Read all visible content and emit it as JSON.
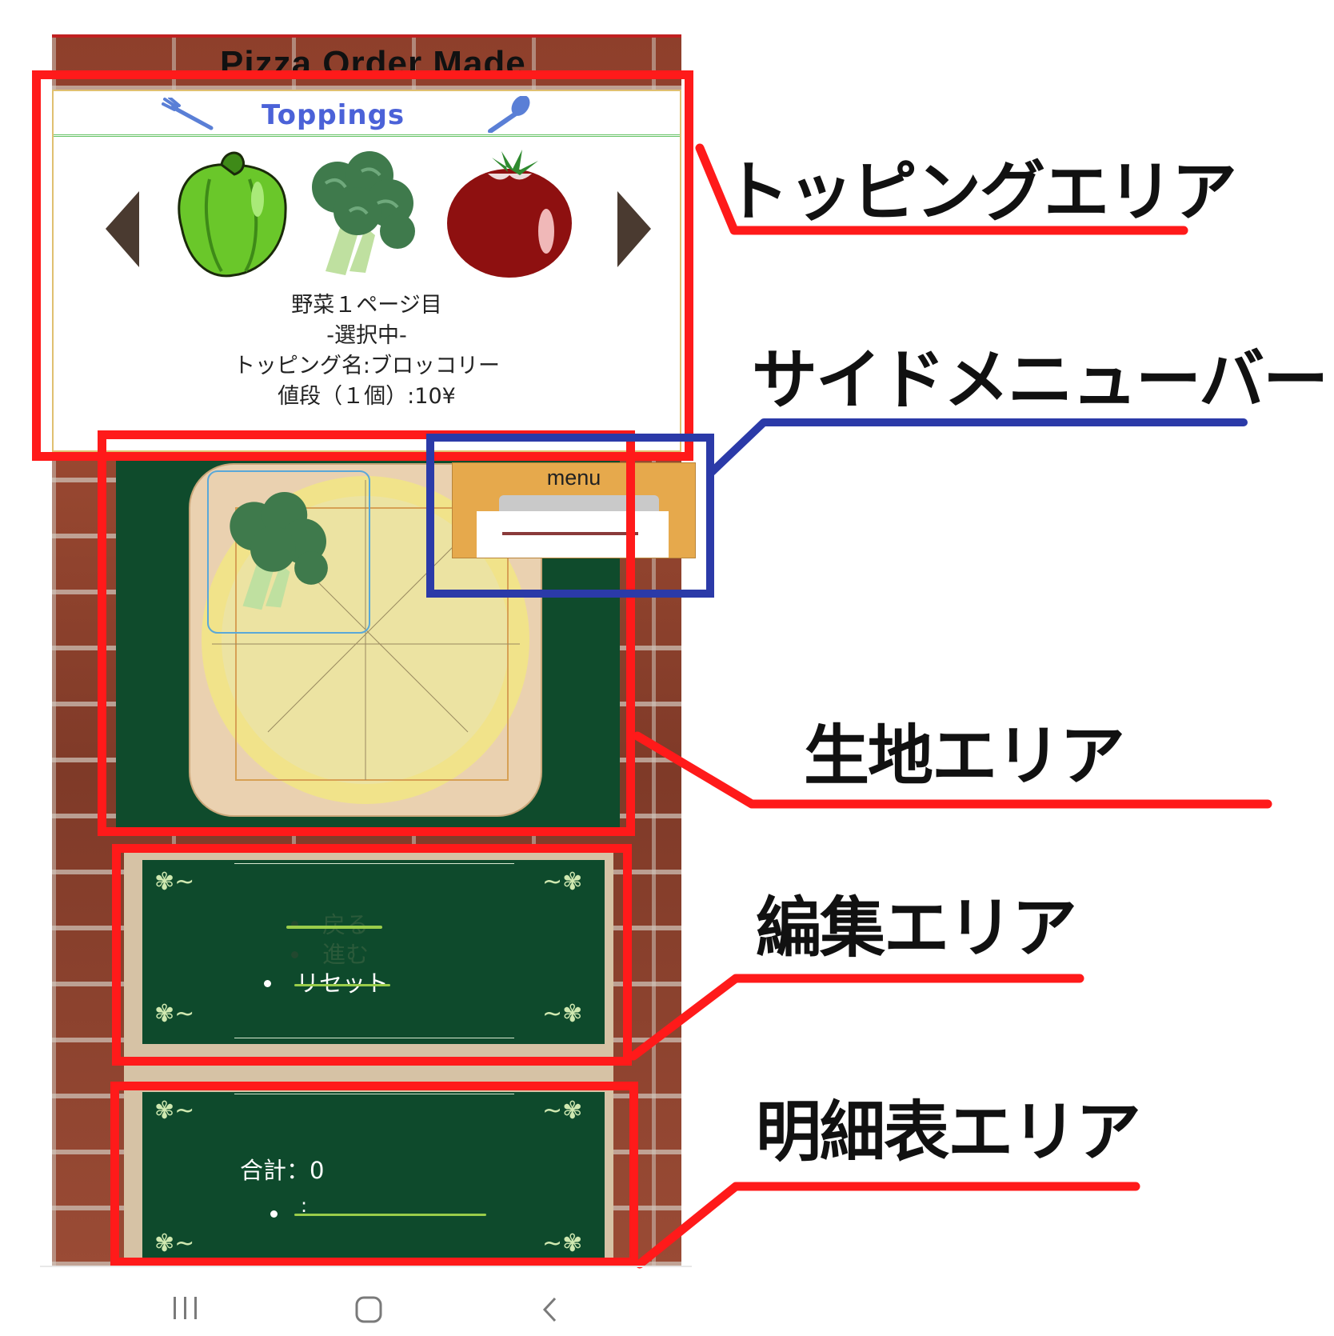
{
  "app": {
    "title": "Pizza Order Made"
  },
  "toppings_panel": {
    "title": "Toppings",
    "page_label": "野菜１ページ目",
    "selection_status": "-選択中-",
    "topping_name": "トッピング名:ブロッコリー",
    "price": "値段（１個）:10¥",
    "items": [
      "pepper",
      "broccoli",
      "tomato"
    ]
  },
  "side_menu": {
    "label": "menu"
  },
  "edit_area": {
    "items": [
      {
        "label": "戻る",
        "enabled": false
      },
      {
        "label": "進む",
        "enabled": false
      },
      {
        "label": "リセット",
        "enabled": true
      }
    ]
  },
  "summary_area": {
    "total": "合計：0",
    "line_item": ":"
  },
  "annotations": {
    "toppings_area": "トッピングエリア",
    "side_menu_bar": "サイドメニューバー",
    "dough_area": "生地エリア",
    "edit_area": "編集エリア",
    "summary_area": "明細表エリア"
  },
  "colors": {
    "annotation_red": "#ff1a1a",
    "annotation_blue": "#2b3aa8",
    "board_green": "#0e4a2c",
    "toppings_title": "#4b62d8",
    "menu_orange": "#e6a94c"
  }
}
